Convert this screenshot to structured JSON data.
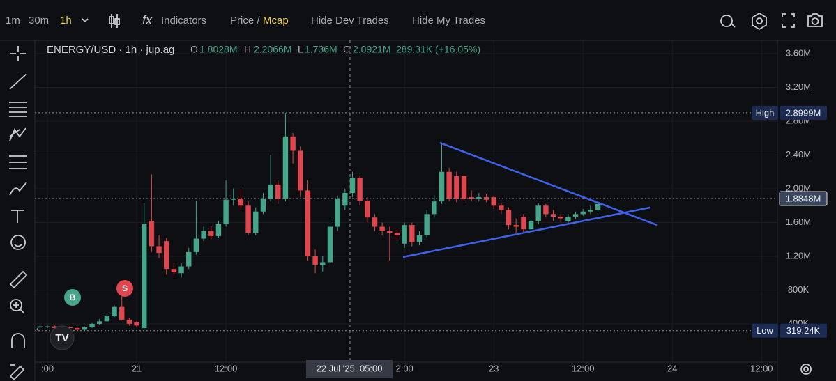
{
  "chart_data": {
    "type": "candlestick",
    "title": "ENERGY/USD · 1h · jup.ag",
    "legend": {
      "o_label": "O",
      "o": "1.8028M",
      "h_label": "H",
      "h": "2.2066M",
      "l_label": "L",
      "l": "1.736M",
      "c_label": "C",
      "c": "2.0921M",
      "change": "289.31K (+16.05%)"
    },
    "toolbar": {
      "intervals": [
        "1m",
        "30m",
        "1h"
      ],
      "indicators": "Indicators",
      "price": "Price /",
      "mcap": "Mcap",
      "hide_dev": "Hide Dev Trades",
      "hide_my": "Hide My Trades"
    },
    "categories": [
      null,
      null,
      null,
      null,
      null,
      null,
      null,
      null,
      null,
      null,
      null,
      null,
      null,
      null,
      null,
      null,
      null,
      null,
      null,
      null,
      null,
      null,
      null,
      null,
      null,
      null,
      null,
      null,
      null,
      null,
      null,
      null,
      null,
      null,
      null,
      null,
      null,
      null,
      null,
      null,
      null,
      null,
      null,
      null,
      null,
      null,
      null,
      null,
      null,
      null,
      null,
      null,
      null,
      null,
      null,
      null,
      null,
      null,
      null,
      null,
      null,
      null,
      null,
      null,
      null,
      null,
      null,
      null,
      null,
      null,
      null,
      null,
      null,
      null,
      null,
      null
    ],
    "open": [
      0.36,
      0.36,
      0.37,
      0.35,
      0.36,
      0.35,
      0.33,
      0.36,
      0.4,
      0.43,
      0.49,
      0.6,
      0.45,
      0.42,
      0.35,
      1.62,
      1.32,
      1.38,
      1.05,
      1.0,
      1.08,
      1.25,
      1.41,
      1.5,
      1.44,
      1.58,
      1.87,
      1.88,
      1.8,
      1.48,
      1.73,
      1.88,
      2.05,
      1.88,
      2.62,
      2.45,
      1.98,
      1.2,
      1.1,
      1.13,
      1.55,
      1.8,
      1.95,
      2.13,
      1.86,
      1.66,
      1.55,
      1.5,
      1.48,
      1.35,
      1.57,
      1.37,
      1.45,
      1.7,
      1.85,
      2.2,
      2.15,
      2.15,
      1.9,
      1.88,
      1.9,
      1.9,
      1.8,
      1.75,
      1.57,
      1.67,
      1.52,
      1.62,
      1.8,
      1.7,
      1.67,
      1.62,
      1.67,
      1.7,
      1.73,
      1.75
    ],
    "high": [
      0.38,
      0.38,
      0.38,
      0.37,
      0.37,
      0.36,
      0.37,
      0.41,
      0.46,
      0.52,
      0.62,
      0.8,
      0.47,
      0.43,
      1.83,
      2.17,
      1.45,
      1.42,
      1.12,
      1.12,
      1.3,
      1.86,
      1.55,
      1.56,
      1.62,
      2.1,
      2.0,
      2.0,
      1.85,
      1.78,
      1.95,
      2.4,
      2.1,
      2.9,
      2.66,
      2.5,
      2.1,
      1.28,
      1.2,
      1.62,
      1.92,
      2.0,
      2.2,
      2.15,
      1.9,
      1.7,
      1.6,
      1.55,
      1.52,
      1.6,
      1.6,
      1.5,
      1.75,
      1.92,
      2.55,
      2.25,
      2.2,
      2.18,
      1.98,
      1.95,
      1.94,
      1.92,
      1.83,
      1.78,
      1.65,
      1.7,
      1.65,
      1.83,
      1.82,
      1.75,
      1.7,
      1.7,
      1.73,
      1.76,
      1.8,
      1.85
    ],
    "low": [
      0.35,
      0.35,
      0.34,
      0.34,
      0.34,
      0.32,
      0.32,
      0.35,
      0.39,
      0.42,
      0.48,
      0.44,
      0.38,
      0.36,
      0.33,
      1.25,
      1.18,
      0.98,
      0.97,
      0.95,
      1.05,
      1.22,
      1.38,
      1.4,
      1.42,
      1.55,
      1.8,
      1.75,
      1.45,
      1.45,
      1.7,
      1.85,
      1.82,
      1.85,
      2.3,
      1.9,
      1.15,
      1.0,
      1.02,
      1.1,
      1.5,
      1.75,
      1.9,
      1.8,
      1.6,
      1.5,
      1.45,
      1.15,
      1.38,
      1.3,
      1.32,
      1.33,
      1.42,
      1.66,
      1.82,
      1.85,
      1.84,
      1.85,
      1.85,
      1.85,
      1.84,
      1.76,
      1.7,
      1.52,
      1.48,
      1.48,
      1.5,
      1.58,
      1.66,
      1.62,
      1.6,
      1.58,
      1.64,
      1.68,
      1.7,
      1.72
    ],
    "close": [
      0.37,
      0.37,
      0.35,
      0.36,
      0.35,
      0.33,
      0.36,
      0.4,
      0.43,
      0.49,
      0.6,
      0.45,
      0.4,
      0.38,
      1.58,
      1.32,
      1.24,
      1.05,
      1.01,
      1.08,
      1.25,
      1.41,
      1.5,
      1.44,
      1.58,
      1.87,
      1.88,
      1.8,
      1.48,
      1.73,
      1.88,
      2.05,
      1.88,
      2.62,
      2.45,
      1.98,
      1.2,
      1.1,
      1.13,
      1.55,
      1.88,
      1.95,
      2.13,
      1.86,
      1.66,
      1.55,
      1.5,
      1.48,
      1.45,
      1.57,
      1.37,
      1.45,
      1.7,
      1.85,
      2.2,
      1.88,
      1.88,
      1.88,
      1.88,
      1.9,
      1.87,
      1.8,
      1.75,
      1.57,
      1.55,
      1.52,
      1.62,
      1.8,
      1.7,
      1.67,
      1.65,
      1.67,
      1.7,
      1.73,
      1.75,
      1.82
    ],
    "up_color": "#45a68c",
    "down_color": "#e0464d",
    "xlim": [
      -0.69,
      99.13
    ],
    "xticks": [
      {
        "value": 1,
        "label": ":00"
      },
      {
        "value": 13,
        "label": "21"
      },
      {
        "value": 25,
        "label": "12:00"
      },
      {
        "value": 49,
        "label": "2:00"
      },
      {
        "value": 61,
        "label": "23"
      },
      {
        "value": 73,
        "label": "12:00"
      },
      {
        "value": 85,
        "label": "24"
      },
      {
        "value": 97,
        "label": "12:00"
      }
    ],
    "ylim": [
      -0.054,
      3.757
    ],
    "yticks": [
      {
        "value": 3.6,
        "label": "3.60M"
      },
      {
        "value": 3.2,
        "label": "3.20M"
      },
      {
        "value": 2.8,
        "label": "2.80M"
      },
      {
        "value": 2.4,
        "label": "2.40M"
      },
      {
        "value": 2.0,
        "label": "2.00M"
      },
      {
        "value": 1.6,
        "label": "1.60M"
      },
      {
        "value": 1.2,
        "label": "1.20M"
      },
      {
        "value": 0.8,
        "label": "800K"
      },
      {
        "value": 0.4,
        "label": "400K"
      }
    ],
    "grid": true,
    "levels": [
      {
        "label": "High",
        "value": 2.8999,
        "value_label": "2.8999M"
      },
      {
        "value": 1.8848,
        "value_label": "1.8848M"
      },
      {
        "label": "Low",
        "value": 0.31924,
        "value_label": "319.24K"
      }
    ],
    "crosshair_label": "22 Jul '25  05:00",
    "markers": [
      {
        "label": "B"
      },
      {
        "label": "S"
      }
    ]
  }
}
